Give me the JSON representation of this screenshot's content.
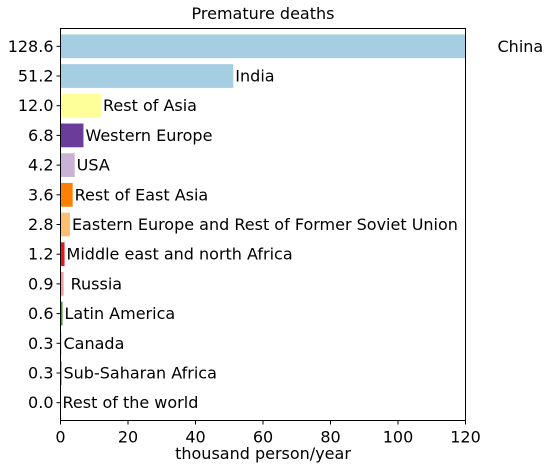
{
  "chart_data": {
    "type": "bar",
    "orientation": "horizontal",
    "title": "Premature deaths",
    "xlabel": "thousand person/year",
    "ylabel": "",
    "xlim": [
      0,
      120
    ],
    "x_ticks": [
      0,
      20,
      40,
      60,
      80,
      100,
      120
    ],
    "grid": false,
    "legend": "none",
    "categories": [
      "China",
      "India",
      "Rest of Asia",
      "Western Europe",
      "USA",
      "Rest of East Asia",
      "Eastern Europe and Rest of Former Soviet Union",
      "Middle east and north Africa",
      " Russia",
      "Latin America",
      "Canada",
      "Sub-Saharan Africa",
      "Rest of the world"
    ],
    "values": [
      128.6,
      51.2,
      12.0,
      6.8,
      4.2,
      3.6,
      2.8,
      1.2,
      0.9,
      0.6,
      0.3,
      0.3,
      0.0
    ],
    "value_labels": [
      "128.6",
      "51.2",
      "12.0",
      "6.8",
      "4.2",
      "3.6",
      "2.8",
      "1.2",
      "0.9",
      "0.6",
      "0.3",
      "0.3",
      "0.0"
    ],
    "colors": [
      "#a6cee3",
      "#a6cee3",
      "#ffff99",
      "#6a3d9a",
      "#cab2d6",
      "#ff7f00",
      "#fdbf6f",
      "#e31a1c",
      "#fb9a99",
      "#33a02c",
      "#b2df8a",
      "#1f78b4",
      "#a6cee3"
    ]
  }
}
